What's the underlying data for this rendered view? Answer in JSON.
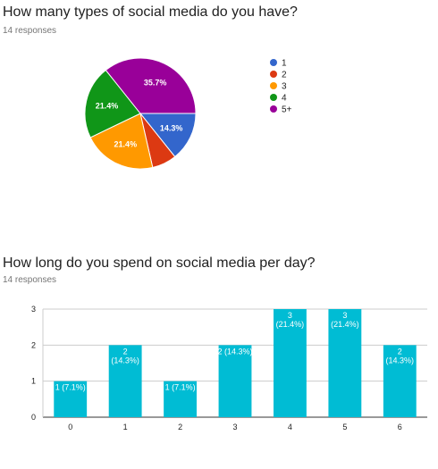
{
  "charts": [
    {
      "title": "How many types of social media do you have?",
      "responses": "14 responses"
    },
    {
      "title": "How long do you spend on social media per day?",
      "responses": "14 responses"
    }
  ],
  "chart_data": [
    {
      "type": "pie",
      "labels": [
        "1",
        "2",
        "3",
        "4",
        "5+"
      ],
      "values": [
        2,
        1,
        3,
        3,
        5
      ],
      "percent_labels": [
        "14.3%",
        "",
        "21.4%",
        "21.4%",
        "35.7%"
      ],
      "colors": [
        "#3366cc",
        "#dc3912",
        "#ff9900",
        "#109618",
        "#990099"
      ],
      "legend_position": "right"
    },
    {
      "type": "bar",
      "categories": [
        "0",
        "1",
        "2",
        "3",
        "4",
        "5",
        "6"
      ],
      "values": [
        1,
        2,
        1,
        2,
        3,
        3,
        2
      ],
      "data_labels": [
        "1 (7.1%)",
        "2\n(14.3%)",
        "1 (7.1%)",
        "2 (14.3%)",
        "3\n(21.4%)",
        "3\n(21.4%)",
        "2\n(14.3%)"
      ],
      "y_ticks": [
        "0",
        "1",
        "2",
        "3"
      ],
      "ylim": [
        0,
        3
      ],
      "color": "#00bcd4",
      "grid": true
    }
  ]
}
